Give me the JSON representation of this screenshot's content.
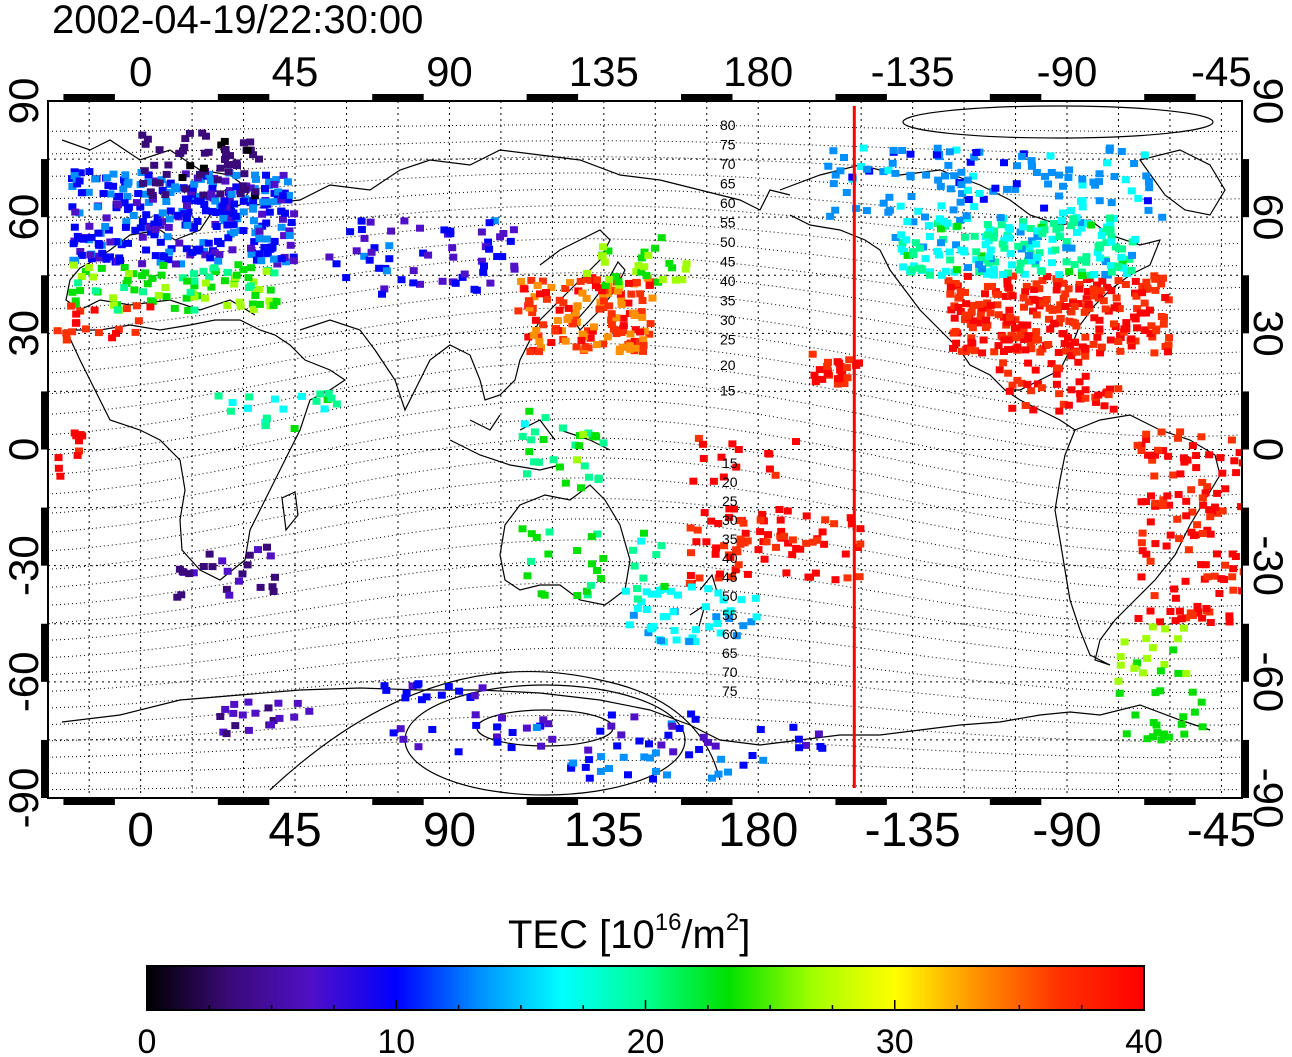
{
  "title": "2002-04-19/22:30:00",
  "map": {
    "top_lon_labels": [
      "0",
      "45",
      "90",
      "135",
      "180",
      "-135",
      "-90",
      "-45"
    ],
    "bottom_lon_labels": [
      "0",
      "45",
      "90",
      "135",
      "180",
      "-135",
      "-90",
      "-45"
    ],
    "lat_labels": [
      "90",
      "60",
      "30",
      "0",
      "-30",
      "-60",
      "-90"
    ],
    "north_contour_labels": [
      "80",
      "75",
      "70",
      "65",
      "60",
      "55",
      "50",
      "45",
      "40",
      "35",
      "30",
      "25",
      "20",
      "15"
    ],
    "south_contour_labels": [
      "15",
      "20",
      "25",
      "30",
      "35",
      "40",
      "45",
      "50",
      "55",
      "60",
      "65",
      "70",
      "75"
    ],
    "marker_longitude": -152,
    "marker_color": "#ff0000"
  },
  "colorbar": {
    "title_main": "TEC  [10",
    "title_sup1": "16",
    "title_mid": "/m",
    "title_sup2": "2",
    "title_end": "]",
    "ticks": [
      "0",
      "10",
      "20",
      "30",
      "40"
    ],
    "min": 0,
    "max": 40,
    "colors": [
      "#000000",
      "#3a0a7a",
      "#5010c8",
      "#0000ff",
      "#0090ff",
      "#00ffff",
      "#00ff90",
      "#00e000",
      "#a0ff00",
      "#ffff00",
      "#ff9000",
      "#ff3000",
      "#ff0000"
    ]
  }
}
